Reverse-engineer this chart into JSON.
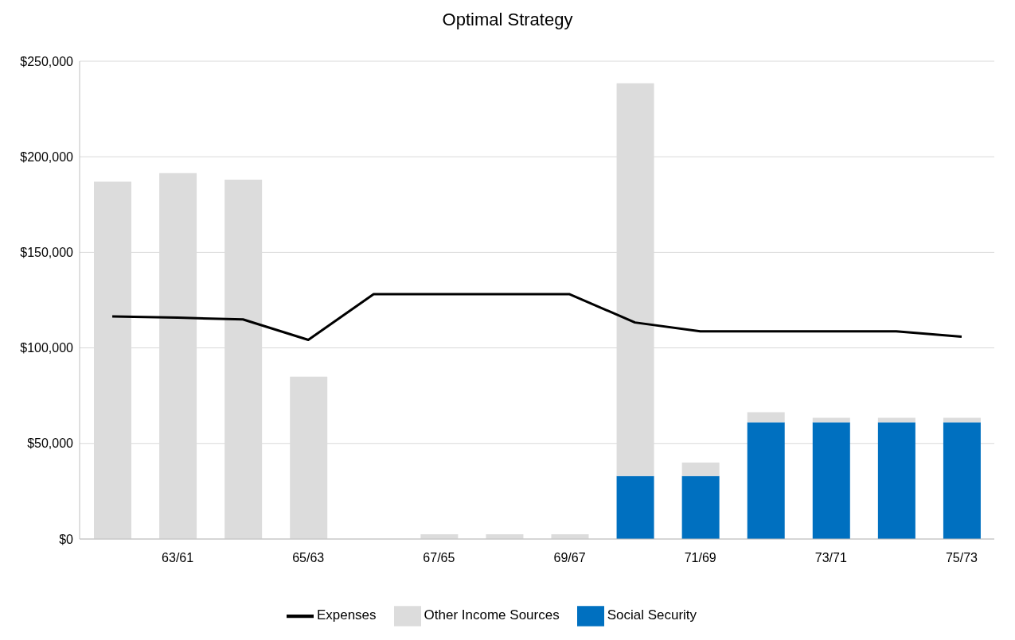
{
  "chart_data": {
    "type": "bar",
    "title": "Optimal Strategy",
    "categories": [
      null,
      "63/61",
      null,
      "65/63",
      null,
      "67/65",
      null,
      "69/67",
      null,
      "71/69",
      null,
      "73/71",
      null,
      "75/73"
    ],
    "series": [
      {
        "name": "Social Security",
        "color": "#0070c0",
        "values": [
          0,
          0,
          0,
          0,
          0,
          0,
          0,
          0,
          33000,
          33000,
          61000,
          61000,
          61000,
          61000
        ]
      },
      {
        "name": "Other Income Sources",
        "color": "#dcdcdc",
        "values": [
          187000,
          191500,
          188000,
          85000,
          0,
          2500,
          2500,
          2500,
          205500,
          7000,
          5300,
          2400,
          2400,
          2400
        ]
      },
      {
        "name": "Expenses",
        "type": "line",
        "color": "#000000",
        "values": [
          116500,
          115800,
          114900,
          104200,
          128100,
          128100,
          128100,
          128100,
          113300,
          108700,
          108700,
          108700,
          108700,
          105900
        ]
      }
    ],
    "stacked": true,
    "ylim": [
      0,
      250000
    ],
    "yticks": [
      {
        "value": 0,
        "label": "$0"
      },
      {
        "value": 50000,
        "label": "$50,000"
      },
      {
        "value": 100000,
        "label": "$100,000"
      },
      {
        "value": 150000,
        "label": "$150,000"
      },
      {
        "value": 200000,
        "label": "$200,000"
      },
      {
        "value": 250000,
        "label": "$250,000"
      }
    ],
    "grid": "y",
    "legend": "bottom",
    "marker": "none",
    "line_style": "solid"
  }
}
